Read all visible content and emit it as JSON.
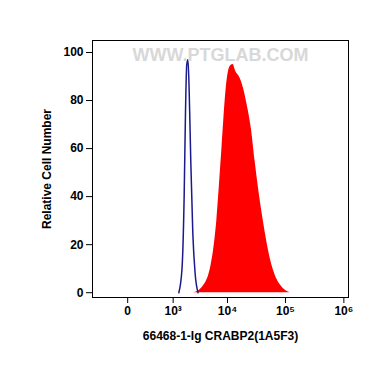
{
  "chart_data": {
    "type": "area",
    "watermark": "WWW.PTGLAB.COM",
    "x_label": "66468-1-Ig CRABP2(1A5F3)",
    "y_label": "Relative Cell Number",
    "log": "x",
    "grid": false,
    "xlim": [
      -600,
      1200000
    ],
    "xticks": [
      0,
      {
        "value": 1000,
        "label": "10³"
      },
      {
        "value": 10000,
        "label": "10⁴"
      },
      {
        "value": 100000,
        "label": "10⁵"
      },
      {
        "value": 1000000,
        "label": "10⁶"
      }
    ],
    "ylim": [
      -2,
      105
    ],
    "yticks": [
      0,
      20,
      40,
      60,
      80,
      100
    ],
    "series": [
      {
        "type": "area",
        "color": "#ff0000",
        "x": [
          2500,
          3500,
          5000,
          6500,
          8000,
          9500,
          11000,
          12500,
          14000,
          16000,
          19000,
          22000,
          26000,
          30000,
          36000,
          45000,
          55000,
          70000,
          90000,
          120000
        ],
        "values": [
          0,
          2,
          10,
          30,
          60,
          85,
          94,
          95,
          92,
          90,
          85,
          78,
          68,
          55,
          40,
          25,
          14,
          6,
          2,
          0
        ]
      },
      {
        "type": "line",
        "color": "#1a1a8c",
        "x": [
          1300,
          1500,
          1650,
          1750,
          1850,
          1950,
          2050,
          2200,
          2400,
          2650,
          3000
        ],
        "values": [
          0,
          10,
          40,
          75,
          95,
          97,
          85,
          55,
          25,
          8,
          0
        ]
      }
    ]
  }
}
